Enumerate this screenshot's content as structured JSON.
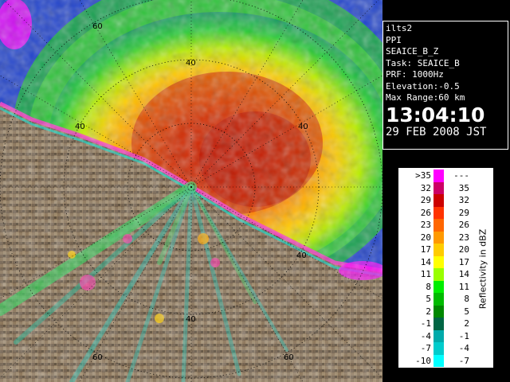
{
  "info": {
    "station": "ilts2",
    "scan_type": "PPI",
    "product": "SEAICE_B_Z",
    "task": "Task: SEAICE_B",
    "prf": "PRF: 1000Hz",
    "elevation": "Elevation:-0.5",
    "max_range": "Max Range:60 km",
    "time": "13:04:10",
    "date": "29 FEB 2008 JST"
  },
  "legend": {
    "unit_label": "Reflectivity in dBZ",
    "rows": [
      {
        "lo": ">35",
        "hi": "---",
        "color": "#ff00ff"
      },
      {
        "lo": "32",
        "hi": "35",
        "color": "#cc0066"
      },
      {
        "lo": "29",
        "hi": "32",
        "color": "#cc0000"
      },
      {
        "lo": "26",
        "hi": "29",
        "color": "#ff3300"
      },
      {
        "lo": "23",
        "hi": "26",
        "color": "#ff6600"
      },
      {
        "lo": "20",
        "hi": "23",
        "color": "#ff9900"
      },
      {
        "lo": "17",
        "hi": "20",
        "color": "#ffcc00"
      },
      {
        "lo": "14",
        "hi": "17",
        "color": "#ffff00"
      },
      {
        "lo": "11",
        "hi": "14",
        "color": "#99ff00"
      },
      {
        "lo": "8",
        "hi": "11",
        "color": "#00ee00"
      },
      {
        "lo": "5",
        "hi": "8",
        "color": "#00bb00"
      },
      {
        "lo": "2",
        "hi": "5",
        "color": "#008800"
      },
      {
        "lo": "-1",
        "hi": "2",
        "color": "#006644"
      },
      {
        "lo": "-4",
        "hi": "-1",
        "color": "#00aaaa"
      },
      {
        "lo": "-7",
        "hi": "-4",
        "color": "#00cccc"
      },
      {
        "lo": "-10",
        "hi": "-7",
        "color": "#00ffff"
      }
    ]
  },
  "range_ring_labels": {
    "ring_40": "40",
    "ring_60": "60"
  }
}
